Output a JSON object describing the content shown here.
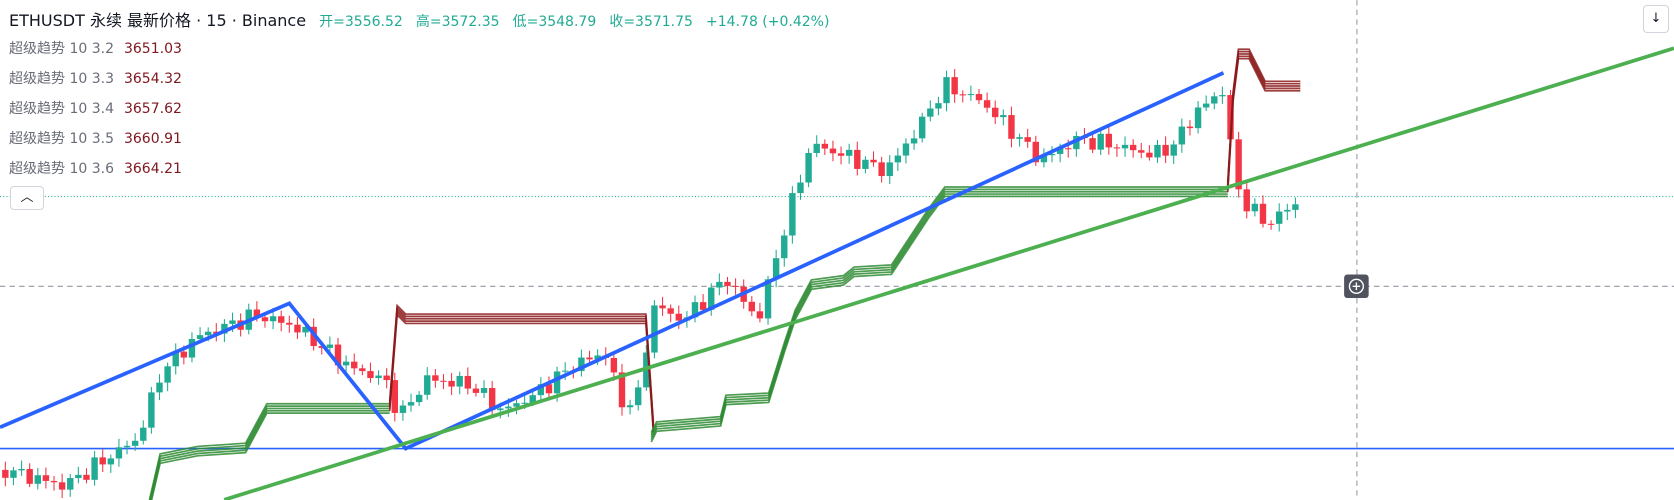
{
  "header": {
    "symbol": "ETHUSDT 永续 最新价格 · 15 · Binance",
    "ohlc": [
      "开=3556.52",
      "高=3572.35",
      "低=3548.79",
      "收=3571.75"
    ],
    "change": "+14.78 (+0.42%)"
  },
  "indicators": [
    {
      "name": "超级趋势 10 3.2",
      "value": "3651.03"
    },
    {
      "name": "超级趋势 10 3.3",
      "value": "3654.32"
    },
    {
      "name": "超级趋势 10 3.4",
      "value": "3657.62"
    },
    {
      "name": "超级趋势 10 3.5",
      "value": "3660.91"
    },
    {
      "name": "超级趋势 10 3.6",
      "value": "3664.21"
    }
  ]
}
